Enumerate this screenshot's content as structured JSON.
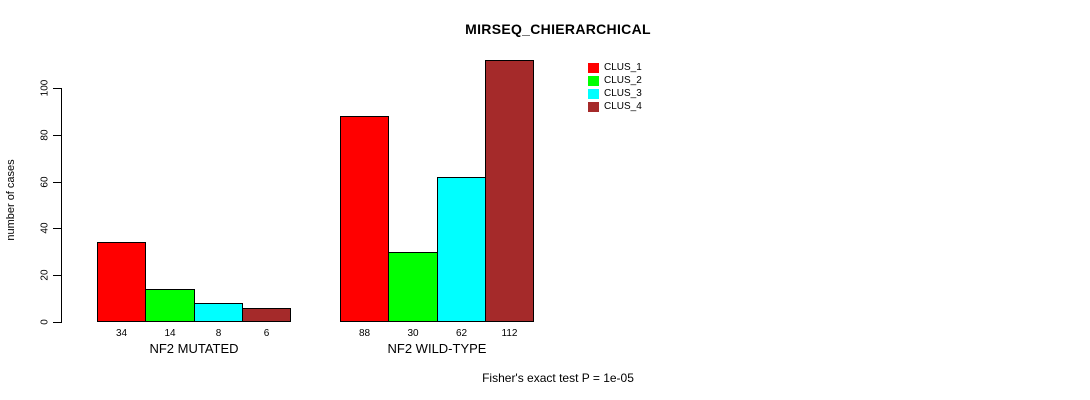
{
  "title": "MIRSEQ_CHIERARCHICAL",
  "footnote": "Fisher's exact test P = 1e-05",
  "chart_data": {
    "type": "bar",
    "grouped": true,
    "title": "MIRSEQ_CHIERARCHICAL",
    "ylabel": "number of cases",
    "xlabel": "",
    "categories": [
      "NF2 MUTATED",
      "NF2 WILD-TYPE"
    ],
    "series": [
      {
        "name": "CLUS_1",
        "color": "#FF0000",
        "values": [
          34,
          88
        ]
      },
      {
        "name": "CLUS_2",
        "color": "#00FF00",
        "values": [
          14,
          30
        ]
      },
      {
        "name": "CLUS_3",
        "color": "#00FFFF",
        "values": [
          8,
          62
        ]
      },
      {
        "name": "CLUS_4",
        "color": "#A52A2A",
        "values": [
          6,
          112
        ]
      }
    ],
    "bar_value_labels": [
      [
        34,
        14,
        8,
        6
      ],
      [
        88,
        30,
        62,
        112
      ]
    ],
    "yticks": [
      0,
      20,
      40,
      60,
      80,
      100
    ],
    "ylim": [
      0,
      117
    ],
    "grid": false,
    "legend_position": "top-right",
    "annotation": "Fisher's exact test P = 1e-05"
  }
}
